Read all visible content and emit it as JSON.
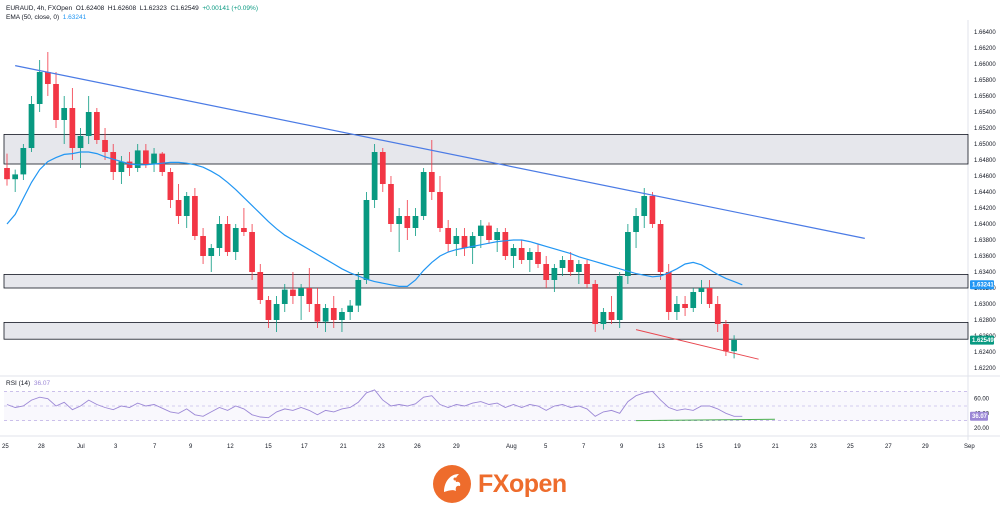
{
  "header": {
    "symbol_line": "EURAUD, 4h, FXOpen",
    "o_label": "O",
    "o_value": "1.62408",
    "h_label": "H",
    "h_value": "1.62608",
    "l_label": "L",
    "l_value": "1.62323",
    "c_label": "C",
    "c_value": "1.62549",
    "change": "+0.00141 (+0.09%)",
    "ema_label": "EMA (50, close, 0)",
    "ema_value": "1.63241"
  },
  "rsi": {
    "label": "RSI (14)",
    "value": "36.07",
    "levels": [
      "60.00",
      "40.00",
      "20.00"
    ]
  },
  "price_tags": {
    "ema": "1.63241",
    "close": "1.62549"
  },
  "logo": {
    "text_fx": "FX",
    "text_open": "open"
  },
  "colors": {
    "up": "#089981",
    "down": "#f23645",
    "ema": "#2196f3",
    "trend": "#4b7be5",
    "support": "#e8474f",
    "rsi": "#9c88d6",
    "rsi_support": "#4caf50",
    "zone": "#d1d4dc"
  },
  "chart_data": {
    "type": "candlestick",
    "symbol": "EURAUD",
    "timeframe": "4h",
    "y_ticks": [
      "1.66400",
      "1.66200",
      "1.66000",
      "1.65800",
      "1.65600",
      "1.65400",
      "1.65200",
      "1.65000",
      "1.64800",
      "1.64600",
      "1.64400",
      "1.64200",
      "1.64000",
      "1.63800",
      "1.63600",
      "1.63400",
      "1.63200",
      "1.63000",
      "1.62800",
      "1.62600",
      "1.62400",
      "1.62200"
    ],
    "ylim": [
      1.6215,
      1.665
    ],
    "x_ticks": [
      "25",
      "28",
      "Jul",
      "3",
      "7",
      "9",
      "12",
      "15",
      "17",
      "21",
      "23",
      "26",
      "29",
      "Aug",
      "5",
      "7",
      "9",
      "13",
      "15",
      "19",
      "21",
      "23",
      "25",
      "27",
      "29",
      "Sep"
    ],
    "zones": [
      [
        1.6475,
        1.6512
      ],
      [
        1.632,
        1.6337
      ],
      [
        1.6256,
        1.6277
      ]
    ],
    "trendline": [
      [
        1,
        1.6598
      ],
      [
        105,
        1.6382
      ]
    ],
    "support_line": [
      [
        77,
        1.6268
      ],
      [
        92,
        1.6231
      ]
    ],
    "ema": [
      1.64,
      1.6412,
      1.6432,
      1.6452,
      1.6468,
      1.6478,
      1.6483,
      1.6487,
      1.6488,
      1.649,
      1.649,
      1.6488,
      1.6484,
      1.6481,
      1.6478,
      1.6475,
      1.6474,
      1.6474,
      1.6475,
      1.6476,
      1.6477,
      1.6477,
      1.6476,
      1.6474,
      1.6471,
      1.6466,
      1.646,
      1.6452,
      1.6443,
      1.6433,
      1.6423,
      1.6413,
      1.6403,
      1.6394,
      1.6386,
      1.638,
      1.6374,
      1.6368,
      1.6362,
      1.6356,
      1.635,
      1.6344,
      1.6339,
      1.6335,
      1.6331,
      1.6328,
      1.6326,
      1.6324,
      1.6322,
      1.6322,
      1.633,
      1.6342,
      1.6352,
      1.636,
      1.6365,
      1.6368,
      1.637,
      1.6372,
      1.6374,
      1.6376,
      1.6378,
      1.6379,
      1.638,
      1.638,
      1.6378,
      1.6375,
      1.6372,
      1.6369,
      1.6366,
      1.6363,
      1.6359,
      1.6356,
      1.6353,
      1.635,
      1.6347,
      1.6344,
      1.6341,
      1.6338,
      1.6336,
      1.6334,
      1.6335,
      1.6339,
      1.6344,
      1.635,
      1.6352,
      1.6349,
      1.6343,
      1.6337,
      1.6332,
      1.6328,
      1.6324
    ],
    "candles": [
      [
        1.647,
        1.6488,
        1.6448,
        1.6456
      ],
      [
        1.6456,
        1.6468,
        1.644,
        1.6462
      ],
      [
        1.6462,
        1.65,
        1.6455,
        1.6495
      ],
      [
        1.6495,
        1.656,
        1.649,
        1.655
      ],
      [
        1.655,
        1.6605,
        1.654,
        1.659
      ],
      [
        1.659,
        1.6615,
        1.656,
        1.6575
      ],
      [
        1.6575,
        1.659,
        1.652,
        1.653
      ],
      [
        1.653,
        1.656,
        1.65,
        1.6545
      ],
      [
        1.6545,
        1.657,
        1.648,
        1.6495
      ],
      [
        1.6495,
        1.652,
        1.647,
        1.651
      ],
      [
        1.651,
        1.656,
        1.65,
        1.654
      ],
      [
        1.654,
        1.6545,
        1.65,
        1.6505
      ],
      [
        1.6505,
        1.652,
        1.648,
        1.649
      ],
      [
        1.649,
        1.65,
        1.6455,
        1.6465
      ],
      [
        1.6465,
        1.6485,
        1.645,
        1.6478
      ],
      [
        1.6478,
        1.649,
        1.646,
        1.647
      ],
      [
        1.647,
        1.65,
        1.6465,
        1.6492
      ],
      [
        1.6492,
        1.65,
        1.647,
        1.6475
      ],
      [
        1.6475,
        1.6495,
        1.6465,
        1.6488
      ],
      [
        1.6488,
        1.649,
        1.646,
        1.6465
      ],
      [
        1.6465,
        1.647,
        1.642,
        1.643
      ],
      [
        1.643,
        1.645,
        1.64,
        1.641
      ],
      [
        1.641,
        1.644,
        1.6395,
        1.6435
      ],
      [
        1.6435,
        1.6445,
        1.638,
        1.6385
      ],
      [
        1.6385,
        1.6395,
        1.635,
        1.636
      ],
      [
        1.636,
        1.6375,
        1.634,
        1.637
      ],
      [
        1.637,
        1.641,
        1.636,
        1.64
      ],
      [
        1.64,
        1.641,
        1.636,
        1.6365
      ],
      [
        1.6365,
        1.64,
        1.6355,
        1.6395
      ],
      [
        1.6395,
        1.642,
        1.6385,
        1.639
      ],
      [
        1.639,
        1.64,
        1.633,
        1.634
      ],
      [
        1.634,
        1.635,
        1.63,
        1.6305
      ],
      [
        1.6305,
        1.631,
        1.627,
        1.628
      ],
      [
        1.628,
        1.631,
        1.6265,
        1.63
      ],
      [
        1.63,
        1.6325,
        1.629,
        1.6318
      ],
      [
        1.6318,
        1.634,
        1.63,
        1.631
      ],
      [
        1.631,
        1.6325,
        1.628,
        1.632
      ],
      [
        1.632,
        1.6345,
        1.629,
        1.63
      ],
      [
        1.63,
        1.632,
        1.627,
        1.6278
      ],
      [
        1.6278,
        1.63,
        1.6265,
        1.6295
      ],
      [
        1.6295,
        1.631,
        1.627,
        1.628
      ],
      [
        1.628,
        1.6295,
        1.6265,
        1.629
      ],
      [
        1.629,
        1.6305,
        1.628,
        1.6298
      ],
      [
        1.6298,
        1.634,
        1.629,
        1.633
      ],
      [
        1.633,
        1.644,
        1.6325,
        1.643
      ],
      [
        1.643,
        1.65,
        1.642,
        1.649
      ],
      [
        1.649,
        1.6495,
        1.644,
        1.645
      ],
      [
        1.645,
        1.646,
        1.639,
        1.64
      ],
      [
        1.64,
        1.642,
        1.6365,
        1.641
      ],
      [
        1.641,
        1.643,
        1.638,
        1.6395
      ],
      [
        1.6395,
        1.642,
        1.6385,
        1.641
      ],
      [
        1.641,
        1.647,
        1.6405,
        1.6465
      ],
      [
        1.6465,
        1.6505,
        1.643,
        1.644
      ],
      [
        1.644,
        1.646,
        1.639,
        1.6395
      ],
      [
        1.6395,
        1.6405,
        1.6365,
        1.6375
      ],
      [
        1.6375,
        1.6395,
        1.636,
        1.6385
      ],
      [
        1.6385,
        1.6395,
        1.636,
        1.637
      ],
      [
        1.637,
        1.639,
        1.635,
        1.6385
      ],
      [
        1.6385,
        1.6405,
        1.637,
        1.6398
      ],
      [
        1.6398,
        1.6402,
        1.6375,
        1.638
      ],
      [
        1.638,
        1.6395,
        1.6365,
        1.639
      ],
      [
        1.639,
        1.6395,
        1.6355,
        1.636
      ],
      [
        1.636,
        1.6375,
        1.6345,
        1.637
      ],
      [
        1.637,
        1.638,
        1.635,
        1.6355
      ],
      [
        1.6355,
        1.637,
        1.634,
        1.6365
      ],
      [
        1.6365,
        1.6375,
        1.6345,
        1.635
      ],
      [
        1.635,
        1.636,
        1.632,
        1.633
      ],
      [
        1.633,
        1.635,
        1.6315,
        1.6345
      ],
      [
        1.6345,
        1.636,
        1.6335,
        1.6355
      ],
      [
        1.6355,
        1.6365,
        1.6335,
        1.634
      ],
      [
        1.634,
        1.6355,
        1.6325,
        1.635
      ],
      [
        1.635,
        1.6355,
        1.632,
        1.6325
      ],
      [
        1.6325,
        1.633,
        1.6265,
        1.6275
      ],
      [
        1.6275,
        1.6295,
        1.6268,
        1.629
      ],
      [
        1.629,
        1.631,
        1.6275,
        1.628
      ],
      [
        1.628,
        1.634,
        1.627,
        1.6335
      ],
      [
        1.6335,
        1.64,
        1.6325,
        1.639
      ],
      [
        1.639,
        1.642,
        1.637,
        1.641
      ],
      [
        1.641,
        1.6445,
        1.6395,
        1.6435
      ],
      [
        1.6435,
        1.644,
        1.6395,
        1.64
      ],
      [
        1.64,
        1.6405,
        1.633,
        1.634
      ],
      [
        1.634,
        1.635,
        1.628,
        1.629
      ],
      [
        1.629,
        1.631,
        1.628,
        1.63
      ],
      [
        1.63,
        1.631,
        1.6285,
        1.6295
      ],
      [
        1.6295,
        1.632,
        1.629,
        1.6315
      ],
      [
        1.6315,
        1.633,
        1.63,
        1.632
      ],
      [
        1.632,
        1.633,
        1.6295,
        1.63
      ],
      [
        1.63,
        1.631,
        1.6265,
        1.6275
      ],
      [
        1.6275,
        1.628,
        1.6235,
        1.6241
      ],
      [
        1.6241,
        1.6261,
        1.6232,
        1.6255
      ]
    ],
    "rsi_values": [
      52,
      48,
      50,
      58,
      62,
      60,
      50,
      55,
      45,
      50,
      58,
      52,
      48,
      45,
      50,
      48,
      54,
      50,
      52,
      47,
      42,
      40,
      46,
      38,
      36,
      42,
      48,
      44,
      50,
      46,
      38,
      35,
      34,
      42,
      46,
      44,
      48,
      44,
      38,
      44,
      42,
      46,
      48,
      55,
      68,
      72,
      58,
      50,
      52,
      50,
      53,
      62,
      64,
      52,
      48,
      52,
      50,
      54,
      56,
      52,
      54,
      48,
      52,
      48,
      52,
      50,
      44,
      50,
      52,
      48,
      50,
      46,
      36,
      42,
      44,
      40,
      56,
      64,
      68,
      70,
      58,
      48,
      44,
      46,
      44,
      50,
      50,
      46,
      40,
      36,
      36
    ],
    "rsi_ylim": [
      20,
      80
    ],
    "rsi_support": [
      [
        77,
        30
      ],
      [
        92,
        32
      ]
    ]
  }
}
